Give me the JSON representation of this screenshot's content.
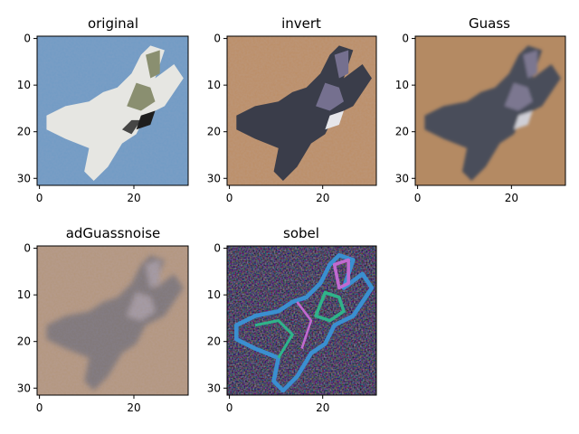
{
  "figure": {
    "panels": [
      {
        "title": "original",
        "xticks": [
          "0",
          "20"
        ],
        "yticks": [
          "0",
          "10",
          "20",
          "30"
        ],
        "colors": {
          "bg1": "#5f8fbf",
          "bg2": "#8fb2d2",
          "body": "#e6e6e2",
          "shade": "#8a8f70",
          "dark": "#1e1e1e"
        }
      },
      {
        "title": "invert",
        "xticks": [
          "0",
          "20"
        ],
        "yticks": [
          "0",
          "10",
          "20",
          "30"
        ],
        "colors": {
          "bg1": "#b5875c",
          "bg2": "#c99c74",
          "body": "#3a3d4a",
          "shade": "#75708f",
          "dark": "#e6e6ea"
        }
      },
      {
        "title": "Guass",
        "xticks": [
          "0",
          "20"
        ],
        "yticks": [
          "0",
          "10",
          "20",
          "30"
        ],
        "colors": {
          "bg1": "#b48a63",
          "bg2": "#c09878",
          "body": "#4a4d5a",
          "shade": "#7b7790",
          "dark": "#cfcfd6"
        }
      },
      {
        "title": "adGuassnoise",
        "xticks": [
          "0",
          "20"
        ],
        "yticks": [
          "0",
          "10",
          "20",
          "30"
        ],
        "colors": {
          "bg1": "#a8866c",
          "bg2": "#c2a98e",
          "body": "#4e4f60",
          "shade": "#8a87a0",
          "dark": "#c8c8d4"
        }
      },
      {
        "title": "sobel",
        "xticks": [
          "0",
          "20"
        ],
        "yticks": [
          "0",
          "10",
          "20",
          "30"
        ],
        "colors": {
          "bg1": "#0a0a0a",
          "bg2": "#1c1c2a",
          "body": "#3a8fd0",
          "shade": "#2fb38a",
          "dark": "#c06ad0"
        }
      }
    ]
  }
}
